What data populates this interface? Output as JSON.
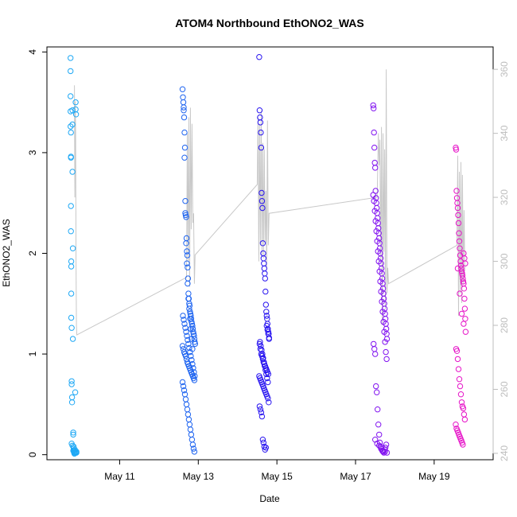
{
  "chart_data": {
    "type": "scatter",
    "title": "ATOM4 Northbound EthONO2_WAS",
    "xlabel": "Date",
    "ylabel": "EthONO2_WAS",
    "x_ticks": [
      "May 11",
      "May 13",
      "May 15",
      "May 17",
      "May 19"
    ],
    "x_tick_days": [
      11,
      13,
      15,
      17,
      19
    ],
    "xlim_days": [
      9.15,
      20.5
    ],
    "ylim": [
      -0.05,
      4.05
    ],
    "y_ticks": [
      0,
      1,
      2,
      3,
      4
    ],
    "y2lim": [
      238,
      367
    ],
    "y2_ticks": [
      240,
      260,
      280,
      300,
      320,
      340,
      360
    ],
    "grid": false,
    "series": [
      {
        "color": "#1EA8F5",
        "x": [
          9.75,
          9.75,
          9.75,
          9.75,
          9.75,
          9.76,
          9.76,
          9.76,
          9.76,
          9.76,
          9.77,
          9.77,
          9.77,
          9.77,
          9.78,
          9.78,
          9.78,
          9.79,
          9.79,
          9.8,
          9.8,
          9.8,
          9.81,
          9.81,
          9.82,
          9.82,
          9.83,
          9.83,
          9.84,
          9.84,
          9.85,
          9.85,
          9.86,
          9.86,
          9.87,
          9.88,
          9.88,
          9.89,
          9.9,
          9.9,
          9.78,
          9.8,
          9.82,
          9.85,
          9.88
        ],
        "values": [
          3.94,
          3.81,
          3.56,
          3.41,
          3.26,
          3.2,
          2.96,
          2.95,
          2.47,
          2.22,
          1.92,
          1.87,
          1.6,
          1.36,
          1.26,
          0.73,
          0.7,
          0.52,
          0.57,
          3.42,
          3.28,
          2.81,
          2.05,
          1.15,
          0.22,
          0.2,
          0.08,
          0.06,
          0.04,
          0.02,
          0.03,
          0.01,
          0.02,
          0.05,
          0.62,
          3.5,
          3.43,
          3.38,
          0.02,
          0.03,
          0.11,
          0.09,
          0.04,
          0.02,
          0.02
        ]
      },
      {
        "color": "#1E64F0",
        "x": [
          12.6,
          12.61,
          12.62,
          12.63,
          12.64,
          12.65,
          12.66,
          12.67,
          12.68,
          12.69,
          12.7,
          12.71,
          12.72,
          12.73,
          12.74,
          12.75,
          12.76,
          12.77,
          12.78,
          12.79,
          12.8,
          12.81,
          12.82,
          12.83,
          12.84,
          12.85,
          12.86,
          12.87,
          12.88,
          12.89,
          12.9,
          12.91,
          12.92,
          12.6,
          12.62,
          12.64,
          12.66,
          12.68,
          12.7,
          12.72,
          12.74,
          12.76,
          12.78,
          12.8,
          12.82,
          12.84,
          12.86,
          12.88,
          12.9,
          12.61,
          12.63,
          12.65,
          12.67,
          12.69,
          12.71,
          12.73,
          12.75,
          12.77,
          12.79,
          12.81,
          12.83,
          12.85,
          12.87,
          12.89,
          12.91,
          12.6,
          12.62,
          12.64,
          12.66,
          12.68,
          12.7,
          12.72,
          12.74,
          12.76,
          12.78,
          12.8,
          12.82,
          12.84,
          12.86,
          12.88,
          12.9,
          12.63,
          12.65,
          12.67,
          12.69,
          12.71,
          12.73,
          12.75,
          12.77,
          12.79,
          12.81,
          12.83,
          12.85
        ],
        "values": [
          3.63,
          3.55,
          3.5,
          3.42,
          3.35,
          3.2,
          3.05,
          2.52,
          2.38,
          2.36,
          2.15,
          2.02,
          1.98,
          1.86,
          1.75,
          1.6,
          1.55,
          1.5,
          1.48,
          1.42,
          1.4,
          1.38,
          1.35,
          1.32,
          1.3,
          1.28,
          1.25,
          1.22,
          1.2,
          1.18,
          1.15,
          1.12,
          1.1,
          1.08,
          1.05,
          1.02,
          1.0,
          0.98,
          0.95,
          0.92,
          0.9,
          0.88,
          0.86,
          0.84,
          0.82,
          0.8,
          0.78,
          0.76,
          0.74,
          1.38,
          1.34,
          1.3,
          1.26,
          1.22,
          1.18,
          1.14,
          1.1,
          1.06,
          1.02,
          0.98,
          0.94,
          0.9,
          0.86,
          0.82,
          0.78,
          0.72,
          0.68,
          0.64,
          0.6,
          0.55,
          0.5,
          0.45,
          0.4,
          0.35,
          0.3,
          0.25,
          0.2,
          0.15,
          0.1,
          0.06,
          0.03,
          3.45,
          2.95,
          2.4,
          2.1,
          1.9,
          1.7,
          1.55,
          1.45,
          1.35,
          1.25,
          1.15,
          1.05
        ]
      },
      {
        "color": "#2814F0",
        "x": [
          14.55,
          14.56,
          14.57,
          14.58,
          14.59,
          14.6,
          14.61,
          14.62,
          14.63,
          14.64,
          14.65,
          14.66,
          14.67,
          14.68,
          14.69,
          14.7,
          14.71,
          14.72,
          14.73,
          14.74,
          14.75,
          14.76,
          14.77,
          14.78,
          14.79,
          14.8,
          14.56,
          14.58,
          14.6,
          14.62,
          14.64,
          14.66,
          14.68,
          14.7,
          14.72,
          14.74,
          14.76,
          14.78,
          14.55,
          14.57,
          14.59,
          14.61,
          14.63,
          14.65,
          14.67,
          14.69,
          14.71,
          14.73,
          14.75,
          14.77,
          14.79,
          14.56,
          14.58,
          14.6,
          14.62,
          14.64,
          14.66,
          14.68,
          14.7,
          14.72,
          14.74,
          14.76,
          14.78,
          14.8,
          14.57,
          14.59,
          14.61,
          14.63,
          14.65,
          14.67,
          14.69,
          14.71,
          14.73,
          14.75,
          14.77
        ],
        "values": [
          3.95,
          3.42,
          3.35,
          3.3,
          3.2,
          3.05,
          2.6,
          2.52,
          2.45,
          2.1,
          2.0,
          1.95,
          1.9,
          1.85,
          1.8,
          1.75,
          1.62,
          1.49,
          1.42,
          1.38,
          1.35,
          1.3,
          1.25,
          1.22,
          1.2,
          1.15,
          1.1,
          1.05,
          1.0,
          0.98,
          0.95,
          0.92,
          0.9,
          0.88,
          0.86,
          0.84,
          0.82,
          0.8,
          0.78,
          0.76,
          0.74,
          0.72,
          0.7,
          0.68,
          0.66,
          0.64,
          0.62,
          0.6,
          0.58,
          0.56,
          0.52,
          0.48,
          0.45,
          0.42,
          0.38,
          0.15,
          0.12,
          0.08,
          0.05,
          0.07,
          1.28,
          1.24,
          1.2,
          1.16,
          1.12,
          1.08,
          1.04,
          1.0,
          0.96,
          0.92,
          0.88,
          0.84,
          0.8,
          0.76,
          0.72
        ]
      },
      {
        "color": "#8214F0",
        "x": [
          17.45,
          17.46,
          17.47,
          17.48,
          17.49,
          17.5,
          17.51,
          17.52,
          17.53,
          17.54,
          17.55,
          17.56,
          17.57,
          17.58,
          17.59,
          17.6,
          17.61,
          17.62,
          17.63,
          17.64,
          17.65,
          17.66,
          17.67,
          17.68,
          17.69,
          17.7,
          17.71,
          17.72,
          17.73,
          17.74,
          17.75,
          17.76,
          17.77,
          17.78,
          17.79,
          17.8,
          17.46,
          17.48,
          17.5,
          17.52,
          17.54,
          17.56,
          17.58,
          17.6,
          17.62,
          17.64,
          17.66,
          17.68,
          17.7,
          17.72,
          17.74,
          17.76,
          17.78,
          17.45,
          17.47,
          17.49,
          17.51,
          17.53,
          17.55,
          17.57,
          17.59,
          17.61,
          17.63,
          17.65,
          17.67,
          17.69,
          17.71,
          17.73,
          17.75,
          17.77,
          17.79,
          17.5,
          17.55,
          17.6,
          17.65,
          17.7,
          17.75,
          17.8
        ],
        "values": [
          3.47,
          3.44,
          3.2,
          3.05,
          2.9,
          2.85,
          2.62,
          2.55,
          2.5,
          2.45,
          2.4,
          2.35,
          2.3,
          2.25,
          2.2,
          2.15,
          2.1,
          2.05,
          2.0,
          1.95,
          1.9,
          1.85,
          1.8,
          1.75,
          1.7,
          1.65,
          1.6,
          1.55,
          1.5,
          1.45,
          1.4,
          1.35,
          1.3,
          1.25,
          1.2,
          1.15,
          1.1,
          1.05,
          1.0,
          0.68,
          0.62,
          0.45,
          0.3,
          0.2,
          0.12,
          0.08,
          0.06,
          0.04,
          0.03,
          0.02,
          0.05,
          0.07,
          0.1,
          2.58,
          2.52,
          2.42,
          2.32,
          2.22,
          2.12,
          2.02,
          1.92,
          1.82,
          1.72,
          1.62,
          1.52,
          1.42,
          1.32,
          1.22,
          1.12,
          1.02,
          0.95,
          0.15,
          0.11,
          0.09,
          0.06,
          0.04,
          0.03,
          0.02
        ]
      },
      {
        "color": "#E614C8",
        "x": [
          19.55,
          19.56,
          19.57,
          19.58,
          19.59,
          19.6,
          19.61,
          19.62,
          19.63,
          19.64,
          19.65,
          19.66,
          19.67,
          19.68,
          19.69,
          19.7,
          19.71,
          19.72,
          19.73,
          19.74,
          19.75,
          19.76,
          19.77,
          19.78,
          19.79,
          19.8,
          19.56,
          19.58,
          19.6,
          19.62,
          19.64,
          19.66,
          19.68,
          19.7,
          19.72,
          19.74,
          19.76,
          19.78,
          19.55,
          19.57,
          19.59,
          19.61,
          19.63,
          19.65,
          19.67,
          19.69,
          19.71,
          19.73,
          19.75,
          19.77,
          19.79,
          19.6,
          19.65,
          19.7,
          19.75
        ],
        "values": [
          3.05,
          3.03,
          2.62,
          2.55,
          2.5,
          2.45,
          2.38,
          2.3,
          2.2,
          2.12,
          2.05,
          1.98,
          1.92,
          1.88,
          1.85,
          1.82,
          1.8,
          1.78,
          1.75,
          1.72,
          1.7,
          1.65,
          1.55,
          1.45,
          1.35,
          1.22,
          1.05,
          1.03,
          0.95,
          0.85,
          0.75,
          0.68,
          0.6,
          0.52,
          0.48,
          0.46,
          0.4,
          0.35,
          0.3,
          0.26,
          0.24,
          0.22,
          0.2,
          0.18,
          0.16,
          0.14,
          0.12,
          0.1,
          2.0,
          1.95,
          1.9,
          1.85,
          1.6,
          1.4,
          1.3
        ]
      },
      {
        "name": "",
        "color": "#c8c8c8",
        "axis": "right",
        "x": [
          9.85,
          9.86,
          9.87,
          9.88,
          9.89,
          9.9,
          9.91,
          12.7,
          12.72,
          12.74,
          12.76,
          12.78,
          12.8,
          12.82,
          12.84,
          12.86,
          12.88,
          12.9,
          12.92,
          14.5,
          14.52,
          14.54,
          14.56,
          14.58,
          14.6,
          14.62,
          14.64,
          14.66,
          14.68,
          14.7,
          14.72,
          14.74,
          14.76,
          14.78,
          14.8,
          17.55,
          17.58,
          17.6,
          17.62,
          17.64,
          17.66,
          17.68,
          17.7,
          17.72,
          17.74,
          17.76,
          17.78,
          17.8,
          17.82,
          17.84,
          19.58,
          19.6,
          19.62,
          19.64,
          19.66,
          19.68,
          19.7,
          19.72,
          19.74,
          19.76,
          19.78
        ],
        "values": [
          355,
          320,
          350,
          340,
          300,
          280,
          277,
          295,
          340,
          300,
          345,
          292,
          348,
          310,
          343,
          312,
          315,
          293,
          302,
          324,
          345,
          300,
          343,
          305,
          347,
          302,
          337,
          301,
          335,
          306,
          322,
          298,
          344,
          305,
          315,
          320,
          340,
          330,
          338,
          301,
          342,
          280,
          340,
          303,
          335,
          285,
          360,
          290,
          298,
          293,
          305,
          333,
          283,
          328,
          290,
          331,
          287,
          327,
          293,
          316,
          297
        ]
      }
    ]
  }
}
